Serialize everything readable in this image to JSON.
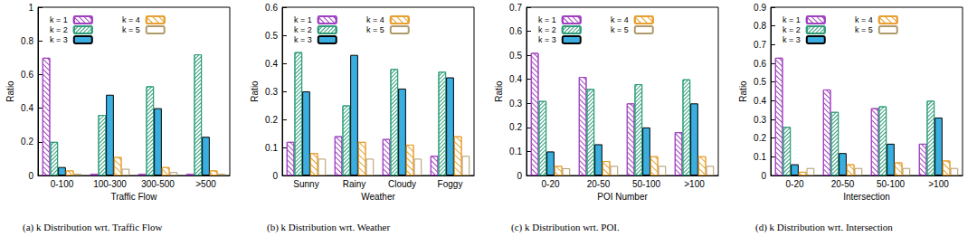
{
  "chart_data": [
    {
      "type": "bar",
      "title": "(a) k Distribution wrt. Traffic Flow",
      "xlabel": "Traffic Flow",
      "ylabel": "Ratio",
      "categories": [
        "0-100",
        "100-300",
        "300-500",
        ">500"
      ],
      "series": [
        {
          "name": "k = 1",
          "color": "#a040c0",
          "values": [
            0.7,
            0.01,
            0.01,
            0.01
          ]
        },
        {
          "name": "k = 2",
          "color": "#2e9e7a",
          "values": [
            0.2,
            0.36,
            0.53,
            0.72
          ]
        },
        {
          "name": "k = 3",
          "color": "#3aaee0",
          "values": [
            0.05,
            0.48,
            0.4,
            0.23
          ]
        },
        {
          "name": "k = 4",
          "color": "#e8a030",
          "values": [
            0.03,
            0.11,
            0.05,
            0.03
          ]
        },
        {
          "name": "k = 5",
          "color": "#b09a6a",
          "values": [
            0.01,
            0.04,
            0.02,
            0.01
          ]
        }
      ],
      "ylim": [
        0,
        1
      ],
      "yticks": [
        0,
        0.2,
        0.4,
        0.6,
        0.8,
        1
      ],
      "grid": false,
      "legend": "upper left"
    },
    {
      "type": "bar",
      "title": "(b) k Distribution wrt. Weather",
      "xlabel": "Weather",
      "ylabel": "Ratio",
      "categories": [
        "Sunny",
        "Rainy",
        "Cloudy",
        "Foggy"
      ],
      "series": [
        {
          "name": "k = 1",
          "color": "#a040c0",
          "values": [
            0.12,
            0.14,
            0.13,
            0.07
          ]
        },
        {
          "name": "k = 2",
          "color": "#2e9e7a",
          "values": [
            0.44,
            0.25,
            0.38,
            0.37
          ]
        },
        {
          "name": "k = 3",
          "color": "#3aaee0",
          "values": [
            0.3,
            0.43,
            0.31,
            0.35
          ]
        },
        {
          "name": "k = 4",
          "color": "#e8a030",
          "values": [
            0.08,
            0.12,
            0.11,
            0.14
          ]
        },
        {
          "name": "k = 5",
          "color": "#b09a6a",
          "values": [
            0.06,
            0.06,
            0.06,
            0.07
          ]
        }
      ],
      "ylim": [
        0,
        0.6
      ],
      "yticks": [
        0,
        0.1,
        0.2,
        0.3,
        0.4,
        0.5,
        0.6
      ],
      "grid": false,
      "legend": "upper left"
    },
    {
      "type": "bar",
      "title": "(c) k Distribution wrt. POI.",
      "xlabel": "POI Number",
      "ylabel": "Ratio",
      "categories": [
        "0-20",
        "20-50",
        "50-100",
        ">100"
      ],
      "series": [
        {
          "name": "k = 1",
          "color": "#a040c0",
          "values": [
            0.51,
            0.41,
            0.3,
            0.18
          ]
        },
        {
          "name": "k = 2",
          "color": "#2e9e7a",
          "values": [
            0.31,
            0.36,
            0.38,
            0.4
          ]
        },
        {
          "name": "k = 3",
          "color": "#3aaee0",
          "values": [
            0.1,
            0.13,
            0.2,
            0.3
          ]
        },
        {
          "name": "k = 4",
          "color": "#e8a030",
          "values": [
            0.04,
            0.06,
            0.08,
            0.08
          ]
        },
        {
          "name": "k = 5",
          "color": "#b09a6a",
          "values": [
            0.03,
            0.04,
            0.04,
            0.04
          ]
        }
      ],
      "ylim": [
        0,
        0.7
      ],
      "yticks": [
        0,
        0.1,
        0.2,
        0.3,
        0.4,
        0.5,
        0.6,
        0.7
      ],
      "grid": false,
      "legend": "upper left"
    },
    {
      "type": "bar",
      "title": "(d) k Distribution wrt. Intersection",
      "xlabel": "Intersection",
      "ylabel": "Ratio",
      "categories": [
        "0-20",
        "20-50",
        "50-100",
        ">100"
      ],
      "series": [
        {
          "name": "k = 1",
          "color": "#a040c0",
          "values": [
            0.63,
            0.46,
            0.36,
            0.17
          ]
        },
        {
          "name": "k = 2",
          "color": "#2e9e7a",
          "values": [
            0.26,
            0.34,
            0.37,
            0.4
          ]
        },
        {
          "name": "k = 3",
          "color": "#3aaee0",
          "values": [
            0.06,
            0.12,
            0.17,
            0.31
          ]
        },
        {
          "name": "k = 4",
          "color": "#e8a030",
          "values": [
            0.02,
            0.06,
            0.07,
            0.08
          ]
        },
        {
          "name": "k = 5",
          "color": "#b09a6a",
          "values": [
            0.04,
            0.04,
            0.04,
            0.04
          ]
        }
      ],
      "ylim": [
        0,
        0.9
      ],
      "yticks": [
        0,
        0.1,
        0.2,
        0.3,
        0.4,
        0.5,
        0.6,
        0.7,
        0.8,
        0.9
      ],
      "grid": false,
      "legend": "upper left"
    }
  ]
}
